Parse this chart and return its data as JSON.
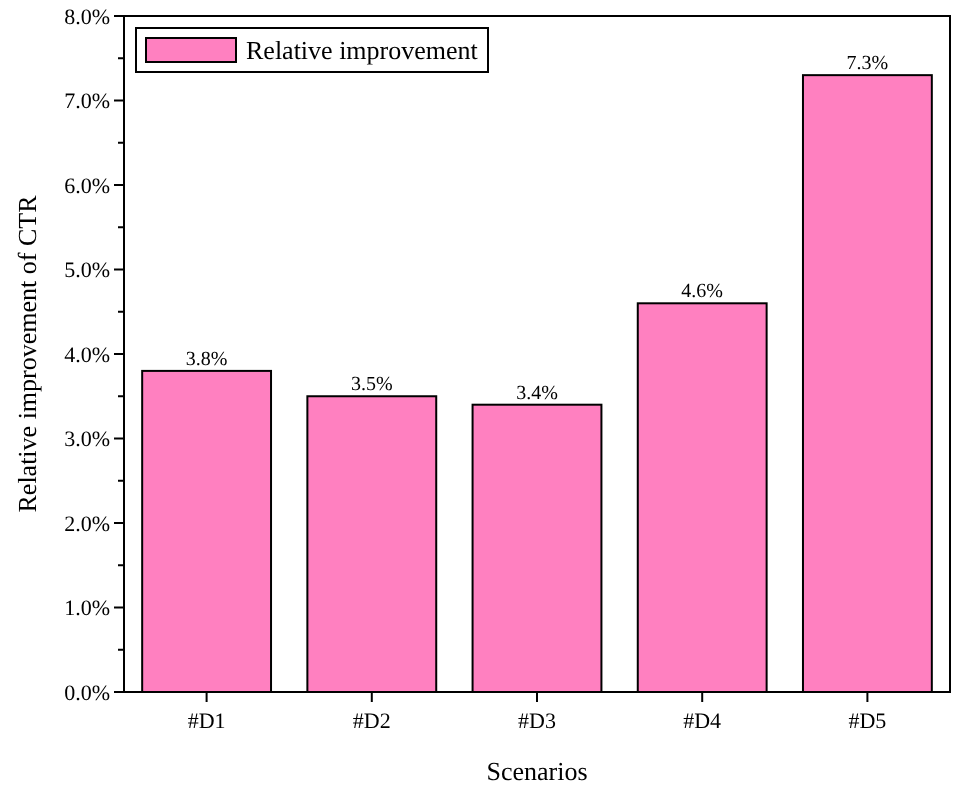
{
  "chart_data": {
    "type": "bar",
    "xlabel": "Scenarios",
    "ylabel": "Relative improvement of CTR",
    "categories": [
      "#D1",
      "#D2",
      "#D3",
      "#D4",
      "#D5"
    ],
    "series": [
      {
        "name": "Relative improvement",
        "color": "#ff80c0",
        "values": [
          3.8,
          3.5,
          3.4,
          4.6,
          7.3
        ],
        "value_labels": [
          "3.8%",
          "3.5%",
          "3.4%",
          "4.6%",
          "7.3%"
        ]
      }
    ],
    "ylim": [
      0,
      8
    ],
    "yticks": [
      {
        "value": 0,
        "label": "0.0%"
      },
      {
        "value": 1,
        "label": "1.0%"
      },
      {
        "value": 2,
        "label": "2.0%"
      },
      {
        "value": 3,
        "label": "3.0%"
      },
      {
        "value": 4,
        "label": "4.0%"
      },
      {
        "value": 5,
        "label": "5.0%"
      },
      {
        "value": 6,
        "label": "6.0%"
      },
      {
        "value": 7,
        "label": "7.0%"
      },
      {
        "value": 8,
        "label": "8.0%"
      }
    ],
    "legend": "top left",
    "grid": false
  }
}
